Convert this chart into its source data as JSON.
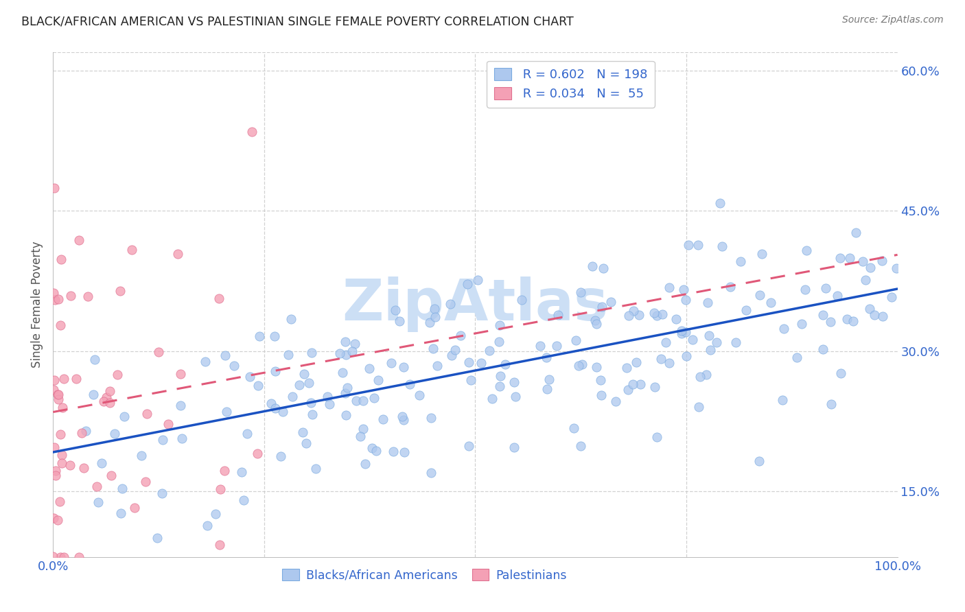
{
  "title": "BLACK/AFRICAN AMERICAN VS PALESTINIAN SINGLE FEMALE POVERTY CORRELATION CHART",
  "source": "Source: ZipAtlas.com",
  "ylabel": "Single Female Poverty",
  "blue_R": 0.602,
  "blue_N": 198,
  "pink_R": 0.034,
  "pink_N": 55,
  "blue_color": "#adc8ee",
  "pink_color": "#f4a0b5",
  "blue_edge_color": "#7aaae0",
  "pink_edge_color": "#e07090",
  "blue_line_color": "#1a52c2",
  "pink_line_color": "#e05878",
  "legend_text_color": "#3366cc",
  "title_color": "#222222",
  "watermark": "ZipAtlas",
  "watermark_color": "#ccdff5",
  "grid_color": "#cccccc",
  "background_color": "#ffffff",
  "xmin": 0.0,
  "xmax": 1.0,
  "ymin": 0.08,
  "ymax": 0.62,
  "ytick_positions": [
    0.15,
    0.3,
    0.45,
    0.6
  ],
  "ytick_labels": [
    "15.0%",
    "30.0%",
    "45.0%",
    "60.0%"
  ],
  "seed_blue": 7,
  "seed_pink": 13
}
